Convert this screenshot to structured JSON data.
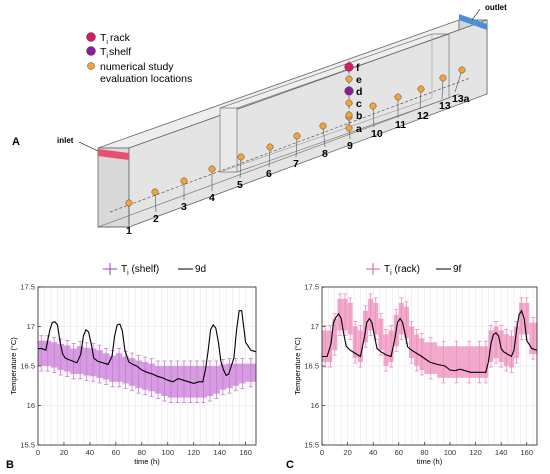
{
  "panel_labels": {
    "a": "A",
    "b": "B",
    "c": "C"
  },
  "diagram": {
    "inlet_label": "inlet",
    "outlet_label": "outlet",
    "legend": [
      {
        "key": "rack",
        "prefix": "T",
        "sub": "i",
        "label": "rack",
        "color": "#d81b60"
      },
      {
        "key": "shelf",
        "prefix": "T",
        "sub": "i",
        "label": "shelf",
        "color": "#8e1a9a"
      },
      {
        "key": "eval",
        "prefix": "",
        "sub": "",
        "label": "numerical study",
        "label2": "evaluation locations",
        "color": "#f5a33a"
      }
    ],
    "floor_locations": [
      "1",
      "2",
      "3",
      "4",
      "5",
      "6",
      "7",
      "8",
      "9",
      "10",
      "11",
      "12",
      "13",
      "13a"
    ],
    "column_locations": [
      "a",
      "b",
      "c",
      "d",
      "e",
      "f"
    ]
  },
  "chart_data": [
    {
      "type": "line",
      "panel": "B",
      "legend": [
        {
          "prefix": "T",
          "sub": "i",
          "text": " (shelf)",
          "color": "#a03cc0",
          "marker": "errorbar"
        },
        {
          "prefix": "",
          "sub": "",
          "text": "9d",
          "color": "#000000",
          "marker": "line"
        }
      ],
      "xlabel": "time (h)",
      "ylabel": "Temperature (°C)",
      "xlim": [
        0,
        168
      ],
      "ylim": [
        15.5,
        17.5
      ],
      "xticks": [
        0,
        20,
        40,
        60,
        80,
        100,
        120,
        140,
        160
      ],
      "yticks": [
        15.5,
        16,
        16.5,
        17,
        17.5
      ],
      "band_color": "#c979d8",
      "band": {
        "x": [
          0,
          5,
          10,
          15,
          20,
          25,
          30,
          35,
          40,
          45,
          50,
          55,
          60,
          65,
          70,
          75,
          80,
          85,
          90,
          95,
          100,
          105,
          110,
          115,
          120,
          125,
          130,
          135,
          140,
          145,
          150,
          155,
          160,
          168
        ],
        "upper": [
          16.82,
          16.82,
          16.8,
          16.78,
          16.76,
          16.72,
          16.75,
          16.73,
          16.72,
          16.7,
          16.66,
          16.63,
          16.66,
          16.62,
          16.6,
          16.57,
          16.55,
          16.53,
          16.5,
          16.5,
          16.5,
          16.5,
          16.5,
          16.5,
          16.5,
          16.5,
          16.5,
          16.5,
          16.52,
          16.53,
          16.53,
          16.53,
          16.53,
          16.53
        ],
        "lower": [
          16.5,
          16.5,
          16.48,
          16.45,
          16.43,
          16.4,
          16.4,
          16.38,
          16.37,
          16.35,
          16.33,
          16.3,
          16.3,
          16.28,
          16.25,
          16.22,
          16.2,
          16.18,
          16.15,
          16.12,
          16.1,
          16.1,
          16.1,
          16.1,
          16.1,
          16.1,
          16.12,
          16.15,
          16.2,
          16.22,
          16.25,
          16.28,
          16.3,
          16.3
        ]
      },
      "series": [
        {
          "x": [
            0,
            3,
            6,
            9,
            11,
            13,
            15,
            17,
            19,
            21,
            24,
            27,
            30,
            33,
            35,
            37,
            39,
            41,
            43,
            46,
            50,
            54,
            57,
            59,
            61,
            63,
            65,
            67,
            70,
            73,
            76,
            80,
            84,
            88,
            92,
            96,
            100,
            104,
            108,
            112,
            116,
            120,
            124,
            127,
            129,
            131,
            133,
            135,
            137,
            139,
            141,
            143,
            145,
            147,
            149,
            151,
            153,
            155,
            157,
            160,
            164,
            168
          ],
          "y": [
            16.72,
            16.72,
            16.7,
            16.95,
            17.05,
            17.06,
            17.02,
            16.8,
            16.65,
            16.6,
            16.58,
            16.56,
            16.54,
            16.65,
            16.88,
            16.96,
            16.93,
            16.78,
            16.6,
            16.56,
            16.54,
            16.52,
            16.62,
            16.88,
            17.02,
            17.03,
            16.95,
            16.7,
            16.55,
            16.52,
            16.5,
            16.45,
            16.42,
            16.4,
            16.37,
            16.35,
            16.32,
            16.3,
            16.34,
            16.32,
            16.3,
            16.28,
            16.3,
            16.3,
            16.45,
            16.68,
            16.96,
            17.02,
            16.98,
            16.8,
            16.55,
            16.45,
            16.38,
            16.4,
            16.5,
            16.6,
            16.95,
            17.2,
            17.2,
            16.8,
            16.7,
            16.68
          ]
        }
      ]
    },
    {
      "type": "line",
      "panel": "C",
      "legend": [
        {
          "prefix": "T",
          "sub": "i",
          "text": " (rack)",
          "color": "#e0559a",
          "marker": "errorbar"
        },
        {
          "prefix": "",
          "sub": "",
          "text": "9f",
          "color": "#000000",
          "marker": "line"
        }
      ],
      "xlabel": "time (h)",
      "ylabel": "Temperature (°C)",
      "xlim": [
        0,
        168
      ],
      "ylim": [
        15.5,
        17.5
      ],
      "xticks": [
        0,
        20,
        40,
        60,
        80,
        100,
        120,
        140,
        160
      ],
      "yticks": [
        15.5,
        16,
        16.5,
        17,
        17.5
      ],
      "band_color": "#ee8cbb",
      "band": {
        "x": [
          0,
          5,
          8,
          12,
          16,
          20,
          24,
          28,
          32,
          36,
          40,
          44,
          48,
          52,
          56,
          60,
          64,
          68,
          72,
          76,
          80,
          90,
          100,
          110,
          120,
          126,
          130,
          134,
          138,
          142,
          146,
          150,
          154,
          158,
          162,
          168
        ],
        "upper": [
          16.95,
          16.95,
          17.1,
          17.35,
          17.35,
          17.3,
          17.0,
          16.95,
          17.2,
          17.35,
          17.3,
          17.1,
          16.9,
          16.95,
          17.15,
          17.3,
          17.25,
          17.0,
          16.9,
          16.85,
          16.8,
          16.75,
          16.75,
          16.75,
          16.75,
          16.75,
          16.95,
          17.0,
          16.95,
          16.9,
          16.88,
          17.0,
          17.3,
          17.3,
          17.05,
          16.95
        ],
        "lower": [
          16.55,
          16.55,
          16.7,
          16.95,
          16.95,
          16.9,
          16.6,
          16.55,
          16.8,
          16.95,
          16.9,
          16.7,
          16.5,
          16.55,
          16.75,
          16.9,
          16.85,
          16.6,
          16.5,
          16.45,
          16.4,
          16.35,
          16.35,
          16.35,
          16.35,
          16.35,
          16.55,
          16.6,
          16.55,
          16.5,
          16.48,
          16.6,
          16.9,
          16.9,
          16.65,
          16.55
        ]
      },
      "series": [
        {
          "x": [
            0,
            4,
            7,
            9,
            11,
            13,
            15,
            17,
            19,
            22,
            26,
            30,
            33,
            35,
            37,
            39,
            41,
            43,
            46,
            50,
            54,
            57,
            59,
            61,
            63,
            65,
            67,
            70,
            74,
            78,
            84,
            90,
            96,
            100,
            104,
            108,
            112,
            116,
            120,
            124,
            128,
            130,
            132,
            134,
            136,
            138,
            140,
            142,
            144,
            146,
            148,
            150,
            152,
            154,
            156,
            158,
            160,
            164,
            168
          ],
          "y": [
            16.62,
            16.62,
            16.78,
            17.05,
            17.12,
            17.16,
            17.1,
            16.9,
            16.75,
            16.7,
            16.66,
            16.62,
            16.85,
            17.05,
            17.1,
            17.05,
            16.88,
            16.72,
            16.68,
            16.64,
            16.62,
            16.85,
            17.05,
            17.1,
            17.05,
            16.9,
            16.74,
            16.7,
            16.66,
            16.62,
            16.55,
            16.52,
            16.5,
            16.45,
            16.44,
            16.46,
            16.44,
            16.42,
            16.42,
            16.42,
            16.42,
            16.55,
            16.78,
            16.9,
            16.92,
            16.88,
            16.72,
            16.68,
            16.66,
            16.64,
            16.62,
            16.7,
            16.95,
            17.15,
            17.2,
            17.1,
            16.82,
            16.72,
            16.7
          ]
        }
      ]
    }
  ]
}
